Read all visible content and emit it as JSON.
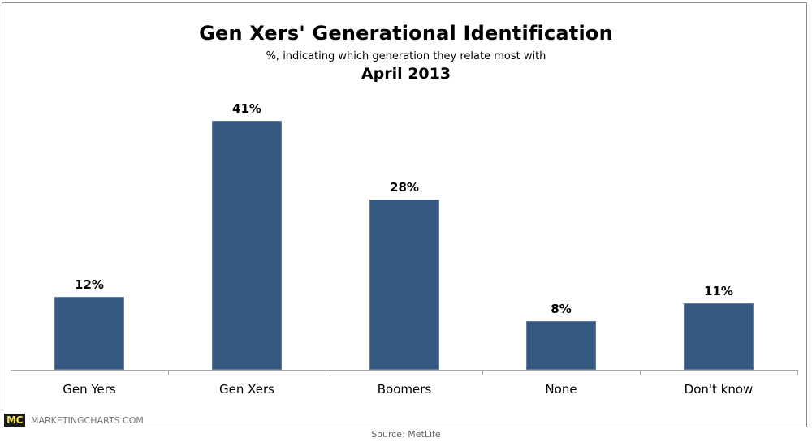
{
  "header": {
    "title": "Gen Xers' Generational Identification",
    "subtitle": "%, indicating which generation they relate most with",
    "date": "April 2013"
  },
  "footer": {
    "logo": "MC",
    "brand": "MARKETINGCHARTS.COM",
    "source": "Source: MetLife"
  },
  "colors": {
    "bar": "#34587f",
    "logo_bg": "#1a1a1a",
    "logo_fg": "#f2e24a"
  },
  "bars": [
    {
      "label": "Gen Yers",
      "value_label": "12%"
    },
    {
      "label": "Gen Xers",
      "value_label": "41%"
    },
    {
      "label": "Boomers",
      "value_label": "28%"
    },
    {
      "label": "None",
      "value_label": "8%"
    },
    {
      "label": "Don't know",
      "value_label": "11%"
    }
  ],
  "chart_data": {
    "type": "bar",
    "title": "Gen Xers' Generational Identification",
    "subtitle": "%, indicating which generation they relate most with; April 2013",
    "categories": [
      "Gen Yers",
      "Gen Xers",
      "Boomers",
      "None",
      "Don't know"
    ],
    "values": [
      12,
      41,
      28,
      8,
      11
    ],
    "xlabel": "",
    "ylabel": "%",
    "ylim": [
      0,
      45
    ],
    "grid": false,
    "legend": "none",
    "data_labels": true,
    "source": "MetLife"
  }
}
